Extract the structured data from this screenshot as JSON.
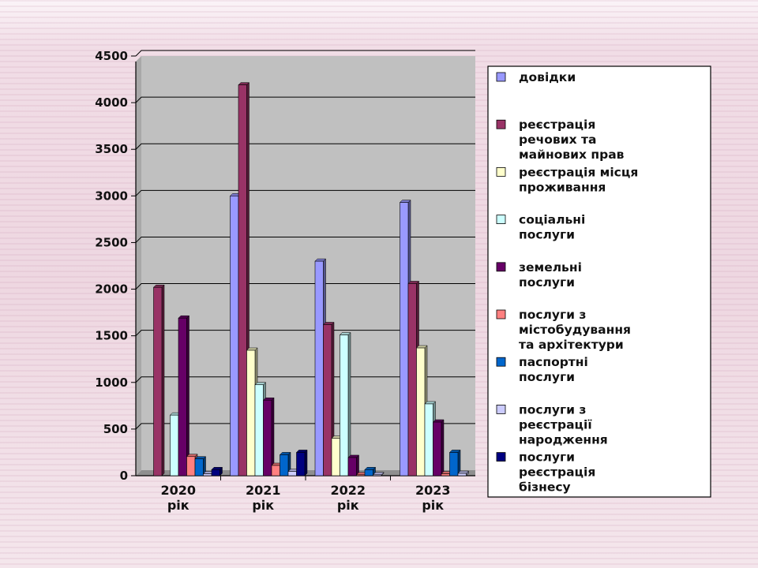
{
  "colors": {
    "plot_bg": "#c0c0c0",
    "series": [
      "#9999ff",
      "#993366",
      "#ffffcc",
      "#ccffff",
      "#660066",
      "#ff8080",
      "#0066cc",
      "#ccccff",
      "#000080"
    ]
  },
  "chart_data": {
    "type": "bar",
    "categories": [
      [
        "2020",
        "рік"
      ],
      [
        "2021",
        "рік"
      ],
      [
        "2022",
        "рік"
      ],
      [
        "2023",
        "рік"
      ]
    ],
    "ylim": [
      0,
      4500
    ],
    "yticks": [
      "0",
      "500",
      "1000",
      "1500",
      "2000",
      "2500",
      "3000",
      "3500",
      "4000",
      "4500"
    ],
    "grid": true,
    "legend_position": "right",
    "series": [
      {
        "name": [
          "довідки"
        ],
        "values": [
          0,
          3000,
          2300,
          2930
        ]
      },
      {
        "name": [
          "реєстрація",
          "речових та",
          "майнових прав"
        ],
        "values": [
          2020,
          4190,
          1620,
          2060
        ]
      },
      {
        "name": [
          "реєстрація місця",
          "проживання"
        ],
        "values": [
          0,
          1345,
          400,
          1370
        ]
      },
      {
        "name": [
          "соціальні",
          "послуги"
        ],
        "values": [
          650,
          975,
          1510,
          770
        ]
      },
      {
        "name": [
          "земельні",
          "послуги"
        ],
        "values": [
          1690,
          810,
          195,
          575
        ]
      },
      {
        "name": [
          "послуги з",
          "містобудування",
          "та архітектури"
        ],
        "values": [
          205,
          110,
          10,
          20
        ]
      },
      {
        "name": [
          "паспортні",
          "послуги"
        ],
        "values": [
          180,
          225,
          65,
          250
        ]
      },
      {
        "name": [
          "послуги з",
          "реєстрації",
          "народження"
        ],
        "values": [
          20,
          45,
          10,
          25
        ]
      },
      {
        "name": [
          "послуги",
          "реєстрація",
          "бізнесу"
        ],
        "values": [
          65,
          250,
          0,
          0
        ]
      }
    ]
  }
}
